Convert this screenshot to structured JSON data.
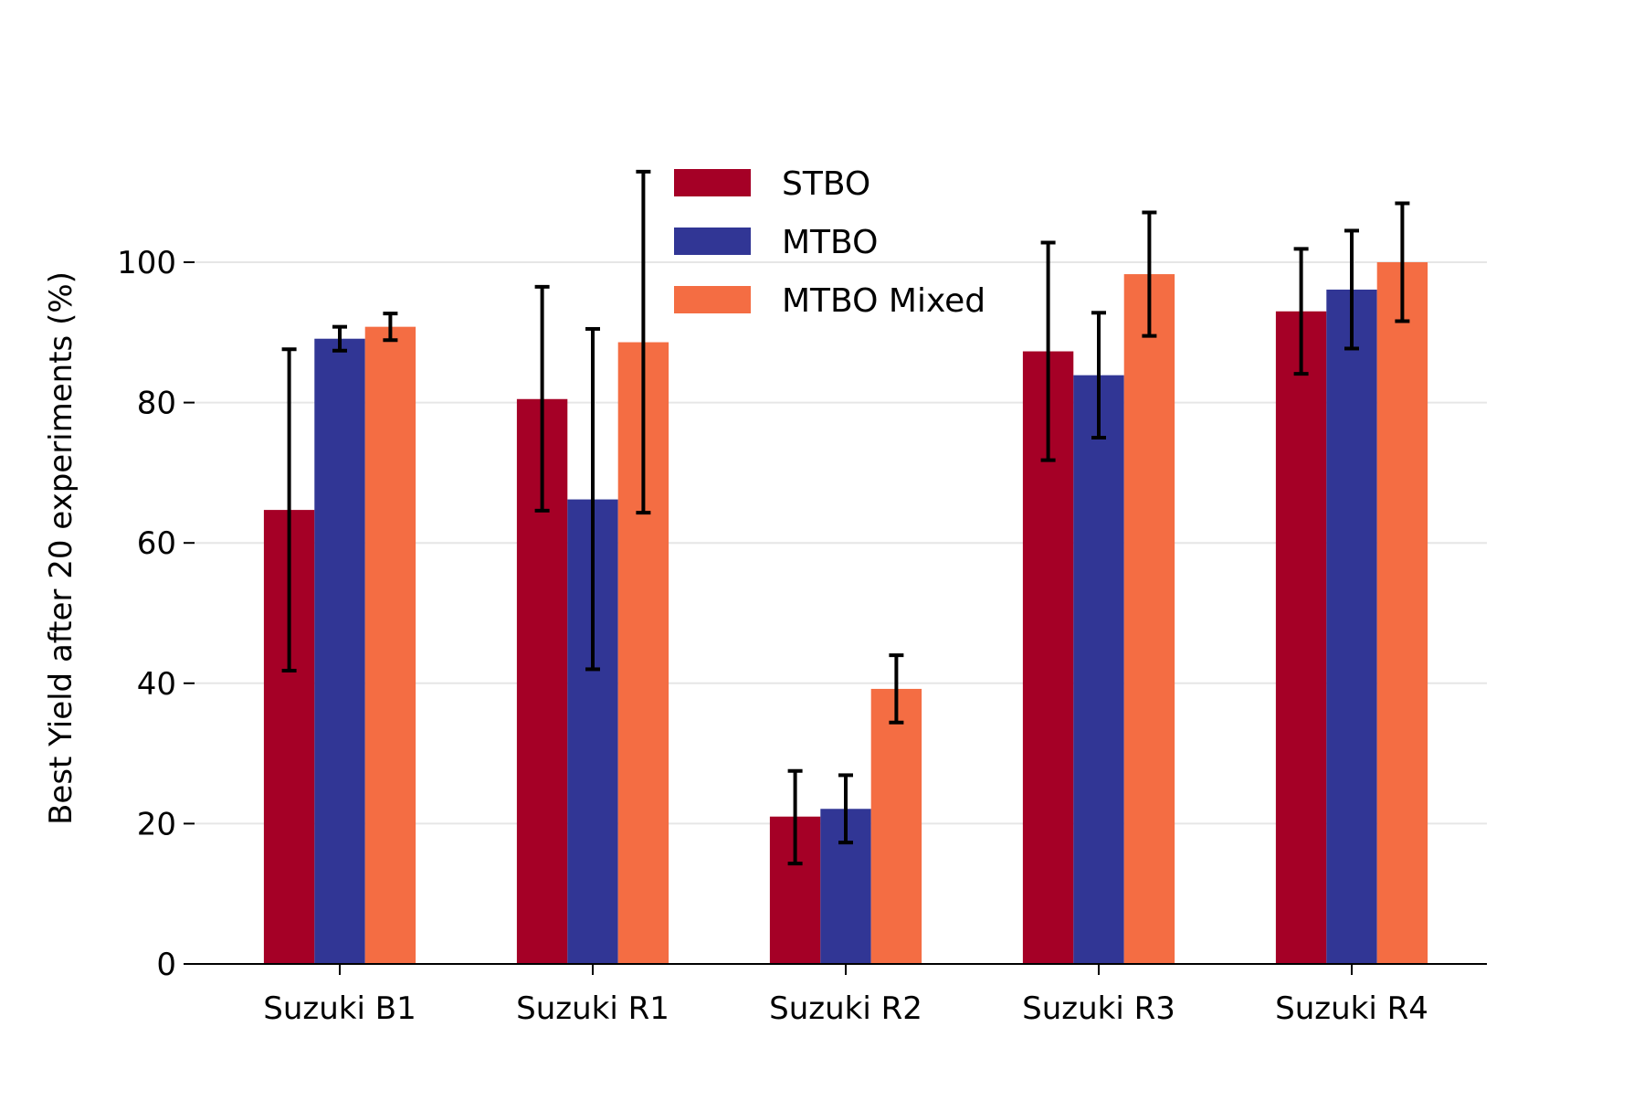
{
  "chart_data": {
    "type": "bar",
    "title": "",
    "xlabel": "",
    "ylabel": "Best Yield after 20 experiments (%)",
    "ylim": [
      0,
      115
    ],
    "yticks": [
      0,
      20,
      40,
      60,
      80,
      100
    ],
    "grid": "horizontal",
    "legend_position": "top-center",
    "categories": [
      "Suzuki B1",
      "Suzuki R1",
      "Suzuki R2",
      "Suzuki R3",
      "Suzuki R4"
    ],
    "series": [
      {
        "name": "STBO",
        "color": "#a50026",
        "values": [
          64.7,
          80.5,
          21.0,
          87.3,
          93.0
        ],
        "error_low": [
          41.8,
          64.6,
          14.3,
          71.8,
          84.1
        ],
        "error_high": [
          87.6,
          96.5,
          27.5,
          102.8,
          101.9
        ]
      },
      {
        "name": "MTBO",
        "color": "#313695",
        "values": [
          89.1,
          66.2,
          22.1,
          83.9,
          96.1
        ],
        "error_low": [
          87.4,
          42.0,
          17.3,
          75.0,
          87.7
        ],
        "error_high": [
          90.8,
          90.5,
          26.9,
          92.8,
          104.5
        ]
      },
      {
        "name": "MTBO Mixed",
        "color": "#f46d43",
        "values": [
          90.8,
          88.6,
          39.2,
          98.3,
          100.0
        ],
        "error_low": [
          88.9,
          64.3,
          34.4,
          89.5,
          91.6
        ],
        "error_high": [
          92.7,
          112.9,
          44.0,
          107.1,
          108.4
        ]
      }
    ]
  }
}
